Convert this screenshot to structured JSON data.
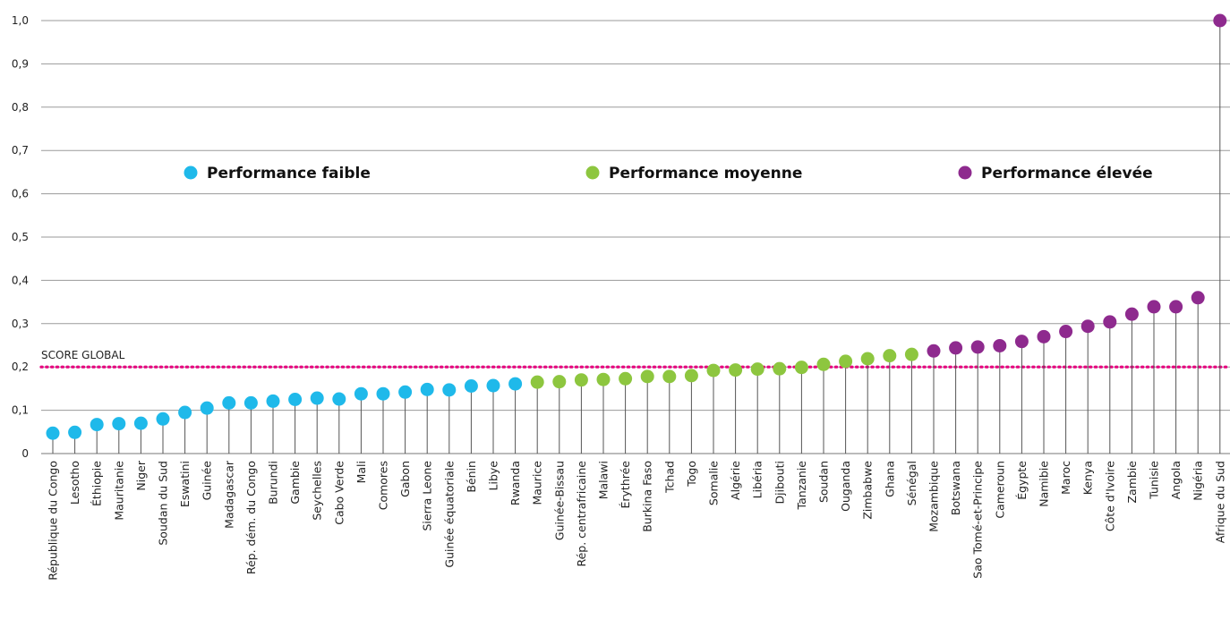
{
  "chart_data": {
    "type": "scatter",
    "style": "lollipop",
    "categories": [
      "République du Congo",
      "Lesotho",
      "Éthiopie",
      "Mauritanie",
      "Niger",
      "Soudan du Sud",
      "Eswatini",
      "Guinée",
      "Madagascar",
      "Rép. dém. du Congo",
      "Burundi",
      "Gambie",
      "Seychelles",
      "Cabo Verde",
      "Mali",
      "Comores",
      "Gabon",
      "Sierra Leone",
      "Guinée équatoriale",
      "Bénin",
      "Libye",
      "Rwanda",
      "Maurice",
      "Guinée-Bissau",
      "Rép. centrafricaine",
      "Malawi",
      "Érythrée",
      "Burkina Faso",
      "Tchad",
      "Togo",
      "Somalie",
      "Algérie",
      "Libéria",
      "Djibouti",
      "Tanzanie",
      "Soudan",
      "Ouganda",
      "Zimbabwe",
      "Ghana",
      "Sénégal",
      "Mozambique",
      "Botswana",
      "Sao Tomé-et-Principe",
      "Cameroun",
      "Égypte",
      "Namibie",
      "Maroc",
      "Kenya",
      "Côte d'Ivoire",
      "Zambie",
      "Tunisie",
      "Angola",
      "Nigéria",
      "Afrique du Sud"
    ],
    "values": [
      0.047,
      0.049,
      0.067,
      0.069,
      0.07,
      0.08,
      0.095,
      0.105,
      0.117,
      0.117,
      0.121,
      0.125,
      0.128,
      0.126,
      0.138,
      0.138,
      0.142,
      0.148,
      0.147,
      0.156,
      0.157,
      0.161,
      0.165,
      0.166,
      0.17,
      0.171,
      0.173,
      0.178,
      0.178,
      0.18,
      0.192,
      0.193,
      0.195,
      0.196,
      0.199,
      0.206,
      0.213,
      0.219,
      0.226,
      0.229,
      0.237,
      0.244,
      0.246,
      0.249,
      0.259,
      0.27,
      0.282,
      0.294,
      0.304,
      0.322,
      0.339,
      0.339,
      0.36,
      1.0
    ],
    "groups": [
      "low",
      "low",
      "low",
      "low",
      "low",
      "low",
      "low",
      "low",
      "low",
      "low",
      "low",
      "low",
      "low",
      "low",
      "low",
      "low",
      "low",
      "low",
      "low",
      "low",
      "low",
      "low",
      "mid",
      "mid",
      "mid",
      "mid",
      "mid",
      "mid",
      "mid",
      "mid",
      "mid",
      "mid",
      "mid",
      "mid",
      "mid",
      "mid",
      "mid",
      "mid",
      "mid",
      "mid",
      "high",
      "high",
      "high",
      "high",
      "high",
      "high",
      "high",
      "high",
      "high",
      "high",
      "high",
      "high",
      "high",
      "high"
    ],
    "series": [
      {
        "key": "low",
        "name": "Performance faible",
        "color": "#1fb9ea"
      },
      {
        "key": "mid",
        "name": "Performance moyenne",
        "color": "#8dc63f"
      },
      {
        "key": "high",
        "name": "Performance élevée",
        "color": "#8e2a8e"
      }
    ],
    "yticks": [
      "0",
      "0,1",
      "0,2",
      "0,3",
      "0,4",
      "0,5",
      "0,6",
      "0,7",
      "0,8",
      "0,9",
      "1,0"
    ],
    "ylim": [
      0,
      1.0
    ],
    "grid": true,
    "legend_position": "upper-center",
    "reference_line": {
      "label": "SCORE GLOBAL",
      "value": 0.2,
      "color": "#e6007e"
    },
    "stem_color": "#555555"
  }
}
